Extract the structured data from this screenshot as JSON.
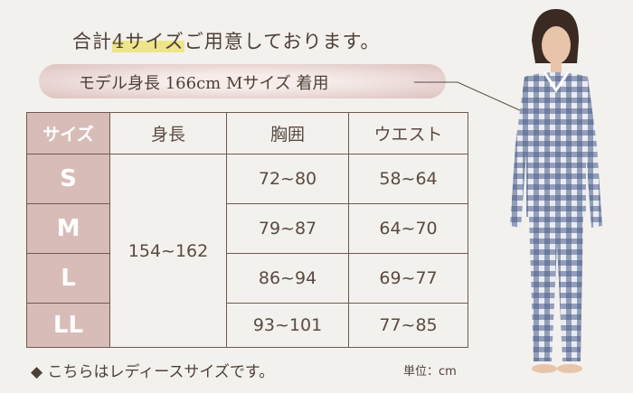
{
  "headline": {
    "prefix": "合計",
    "highlight": "4サイズ",
    "suffix": "ご用意しております。"
  },
  "model_info": "モデル身長 166cm  Mサイズ 着用",
  "table": {
    "headers": [
      "サイズ",
      "身長",
      "胸囲",
      "ウエスト"
    ],
    "height_merged": "154~162",
    "rows": [
      {
        "size": "S",
        "chest": "72~80",
        "waist": "58~64"
      },
      {
        "size": "M",
        "chest": "79~87",
        "waist": "64~70"
      },
      {
        "size": "L",
        "chest": "86~94",
        "waist": "69~77"
      },
      {
        "size": "LL",
        "chest": "93~101",
        "waist": "77~85"
      }
    ]
  },
  "note": "◆ こちらはレディースサイズです。",
  "unit": "単位：cm",
  "colors": {
    "size_column": "#d8bcb7",
    "highlight": "#eee58a",
    "border": "#6e5a50",
    "gingham": "#4d5f8a"
  }
}
